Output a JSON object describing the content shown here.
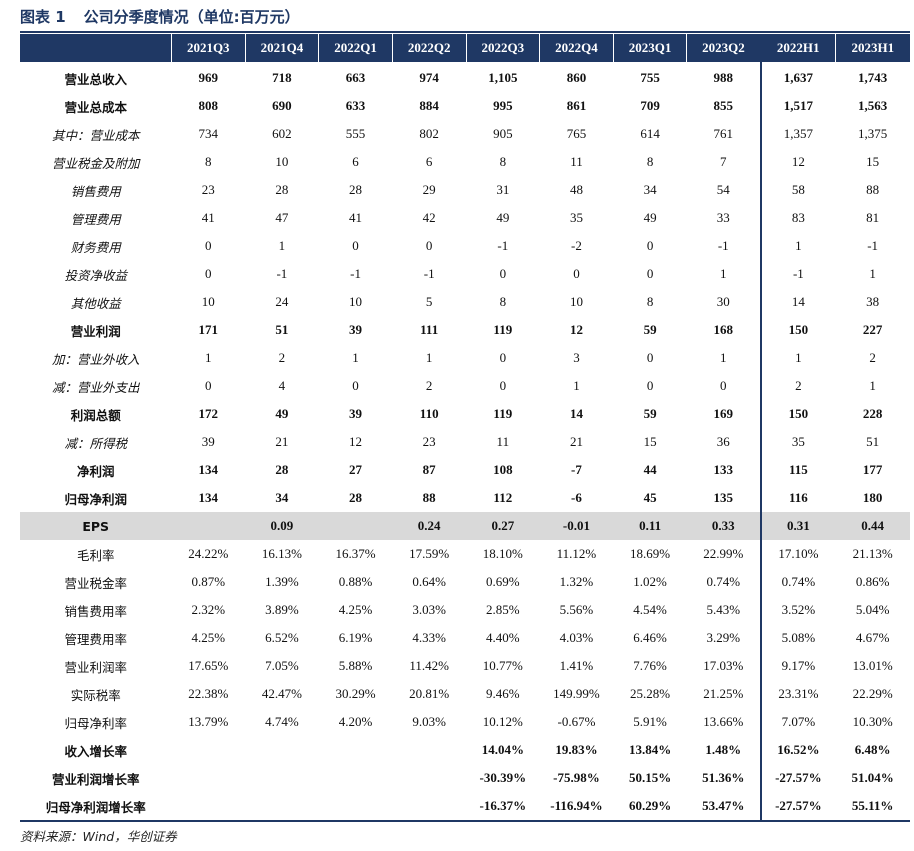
{
  "figure": {
    "label": "图表 1",
    "title": "公司分季度情况（单位:百万元）",
    "source": "资料来源：Wind，华创证券"
  },
  "header": [
    "2021Q3",
    "2021Q4",
    "2022Q1",
    "2022Q2",
    "2022Q3",
    "2022Q4",
    "2023Q1",
    "2023Q2",
    "2022H1",
    "2023H1"
  ],
  "rows": [
    {
      "label": "营业总收入",
      "style": "b",
      "values": [
        "969",
        "718",
        "663",
        "974",
        "1,105",
        "860",
        "755",
        "988",
        "1,637",
        "1,743"
      ]
    },
    {
      "label": "营业总成本",
      "style": "b",
      "values": [
        "808",
        "690",
        "633",
        "884",
        "995",
        "861",
        "709",
        "855",
        "1,517",
        "1,563"
      ]
    },
    {
      "label": "其中：营业成本",
      "style": "it",
      "values": [
        "734",
        "602",
        "555",
        "802",
        "905",
        "765",
        "614",
        "761",
        "1,357",
        "1,375"
      ]
    },
    {
      "label": "营业税金及附加",
      "style": "it",
      "values": [
        "8",
        "10",
        "6",
        "6",
        "8",
        "11",
        "8",
        "7",
        "12",
        "15"
      ]
    },
    {
      "label": "销售费用",
      "style": "it",
      "values": [
        "23",
        "28",
        "28",
        "29",
        "31",
        "48",
        "34",
        "54",
        "58",
        "88"
      ]
    },
    {
      "label": "管理费用",
      "style": "it",
      "values": [
        "41",
        "47",
        "41",
        "42",
        "49",
        "35",
        "49",
        "33",
        "83",
        "81"
      ]
    },
    {
      "label": "财务费用",
      "style": "it",
      "values": [
        "0",
        "1",
        "0",
        "0",
        "-1",
        "-2",
        "0",
        "-1",
        "1",
        "-1"
      ]
    },
    {
      "label": "投资净收益",
      "style": "it",
      "values": [
        "0",
        "-1",
        "-1",
        "-1",
        "0",
        "0",
        "0",
        "1",
        "-1",
        "1"
      ]
    },
    {
      "label": "其他收益",
      "style": "it",
      "values": [
        "10",
        "24",
        "10",
        "5",
        "8",
        "10",
        "8",
        "30",
        "14",
        "38"
      ]
    },
    {
      "label": "营业利润",
      "style": "b",
      "values": [
        "171",
        "51",
        "39",
        "111",
        "119",
        "12",
        "59",
        "168",
        "150",
        "227"
      ]
    },
    {
      "label": "加：营业外收入",
      "style": "it",
      "values": [
        "1",
        "2",
        "1",
        "1",
        "0",
        "3",
        "0",
        "1",
        "1",
        "2"
      ]
    },
    {
      "label": "减：营业外支出",
      "style": "it",
      "values": [
        "0",
        "4",
        "0",
        "2",
        "0",
        "1",
        "0",
        "0",
        "2",
        "1"
      ]
    },
    {
      "label": "利润总额",
      "style": "b",
      "values": [
        "172",
        "49",
        "39",
        "110",
        "119",
        "14",
        "59",
        "169",
        "150",
        "228"
      ]
    },
    {
      "label": "减：所得税",
      "style": "it",
      "values": [
        "39",
        "21",
        "12",
        "23",
        "11",
        "21",
        "15",
        "36",
        "35",
        "51"
      ]
    },
    {
      "label": "净利润",
      "style": "b",
      "values": [
        "134",
        "28",
        "27",
        "87",
        "108",
        "-7",
        "44",
        "133",
        "115",
        "177"
      ]
    },
    {
      "label": "归母净利润",
      "style": "b",
      "values": [
        "134",
        "34",
        "28",
        "88",
        "112",
        "-6",
        "45",
        "135",
        "116",
        "180"
      ]
    },
    {
      "label": "EPS",
      "style": "eps",
      "values": [
        "",
        "0.09",
        "",
        "0.24",
        "0.27",
        "-0.01",
        "0.11",
        "0.33",
        "0.31",
        "0.44"
      ]
    },
    {
      "label": "毛利率",
      "style": "n",
      "values": [
        "24.22%",
        "16.13%",
        "16.37%",
        "17.59%",
        "18.10%",
        "11.12%",
        "18.69%",
        "22.99%",
        "17.10%",
        "21.13%"
      ]
    },
    {
      "label": "营业税金率",
      "style": "n",
      "values": [
        "0.87%",
        "1.39%",
        "0.88%",
        "0.64%",
        "0.69%",
        "1.32%",
        "1.02%",
        "0.74%",
        "0.74%",
        "0.86%"
      ]
    },
    {
      "label": "销售费用率",
      "style": "n",
      "values": [
        "2.32%",
        "3.89%",
        "4.25%",
        "3.03%",
        "2.85%",
        "5.56%",
        "4.54%",
        "5.43%",
        "3.52%",
        "5.04%"
      ]
    },
    {
      "label": "管理费用率",
      "style": "n",
      "values": [
        "4.25%",
        "6.52%",
        "6.19%",
        "4.33%",
        "4.40%",
        "4.03%",
        "6.46%",
        "3.29%",
        "5.08%",
        "4.67%"
      ]
    },
    {
      "label": "营业利润率",
      "style": "n",
      "values": [
        "17.65%",
        "7.05%",
        "5.88%",
        "11.42%",
        "10.77%",
        "1.41%",
        "7.76%",
        "17.03%",
        "9.17%",
        "13.01%"
      ]
    },
    {
      "label": "实际税率",
      "style": "n",
      "values": [
        "22.38%",
        "42.47%",
        "30.29%",
        "20.81%",
        "9.46%",
        "149.99%",
        "25.28%",
        "21.25%",
        "23.31%",
        "22.29%"
      ]
    },
    {
      "label": "归母净利率",
      "style": "n",
      "values": [
        "13.79%",
        "4.74%",
        "4.20%",
        "9.03%",
        "10.12%",
        "-0.67%",
        "5.91%",
        "13.66%",
        "7.07%",
        "10.30%"
      ]
    },
    {
      "label": "收入增长率",
      "style": "b",
      "values": [
        "",
        "",
        "",
        "",
        "14.04%",
        "19.83%",
        "13.84%",
        "1.48%",
        "16.52%",
        "6.48%"
      ]
    },
    {
      "label": "营业利润增长率",
      "style": "b",
      "values": [
        "",
        "",
        "",
        "",
        "-30.39%",
        "-75.98%",
        "50.15%",
        "51.36%",
        "-27.57%",
        "51.04%"
      ]
    },
    {
      "label": "归母净利润增长率",
      "style": "b",
      "values": [
        "",
        "",
        "",
        "",
        "-16.37%",
        "-116.94%",
        "60.29%",
        "53.47%",
        "-27.57%",
        "55.11%"
      ]
    }
  ]
}
